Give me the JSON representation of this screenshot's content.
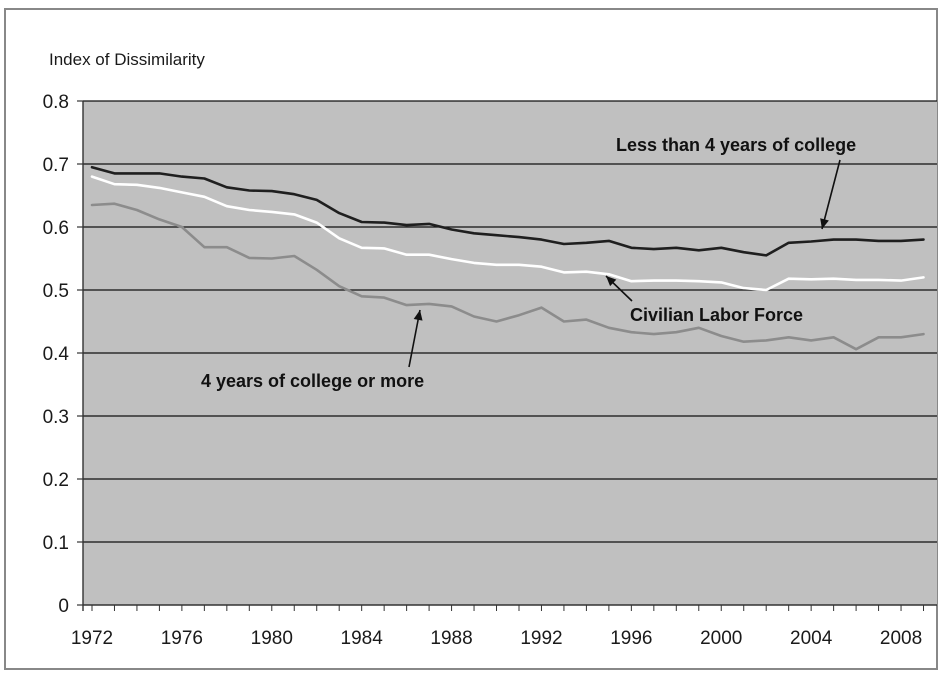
{
  "chart_data": {
    "type": "line",
    "title": "",
    "xlabel": "",
    "ylabel": "Index of Dissimilarity",
    "xlim": [
      1971.6,
      2009.6
    ],
    "ylim": [
      0,
      0.8
    ],
    "y_ticks": [
      "0",
      "0.1",
      "0.2",
      "0.3",
      "0.4",
      "0.5",
      "0.6",
      "0.7",
      "0.8"
    ],
    "x_ticks": [
      "1972",
      "1976",
      "1980",
      "1984",
      "1988",
      "1992",
      "1996",
      "2000",
      "2004",
      "2008"
    ],
    "grid": true,
    "legend": "none (series labeled by annotations with arrows)",
    "x": [
      1972,
      1973,
      1974,
      1975,
      1976,
      1977,
      1978,
      1979,
      1980,
      1981,
      1982,
      1983,
      1984,
      1985,
      1986,
      1987,
      1988,
      1989,
      1990,
      1991,
      1992,
      1993,
      1994,
      1995,
      1996,
      1997,
      1998,
      1999,
      2000,
      2001,
      2002,
      2003,
      2004,
      2005,
      2006,
      2007,
      2008,
      2009
    ],
    "series": [
      {
        "name": "Less than 4 years of college",
        "color": "#1f1f1f",
        "values": [
          0.695,
          0.685,
          0.685,
          0.685,
          0.68,
          0.677,
          0.663,
          0.658,
          0.657,
          0.652,
          0.643,
          0.622,
          0.608,
          0.607,
          0.603,
          0.605,
          0.596,
          0.59,
          0.587,
          0.584,
          0.58,
          0.573,
          0.575,
          0.578,
          0.567,
          0.565,
          0.567,
          0.563,
          0.567,
          0.56,
          0.555,
          0.575,
          0.577,
          0.58,
          0.58,
          0.578,
          0.578,
          0.58
        ]
      },
      {
        "name": "Civilian Labor Force",
        "color": "#ffffff",
        "values": [
          0.68,
          0.668,
          0.667,
          0.662,
          0.655,
          0.648,
          0.633,
          0.627,
          0.624,
          0.62,
          0.607,
          0.582,
          0.567,
          0.566,
          0.556,
          0.556,
          0.549,
          0.543,
          0.54,
          0.54,
          0.537,
          0.528,
          0.529,
          0.525,
          0.514,
          0.515,
          0.515,
          0.514,
          0.512,
          0.503,
          0.5,
          0.518,
          0.517,
          0.518,
          0.516,
          0.516,
          0.515,
          0.52
        ]
      },
      {
        "name": "4 years of college or more",
        "color": "#8c8c8c",
        "values": [
          0.635,
          0.637,
          0.627,
          0.612,
          0.6,
          0.568,
          0.568,
          0.551,
          0.55,
          0.554,
          0.532,
          0.506,
          0.49,
          0.488,
          0.476,
          0.478,
          0.474,
          0.458,
          0.45,
          0.46,
          0.472,
          0.45,
          0.453,
          0.44,
          0.433,
          0.43,
          0.433,
          0.44,
          0.427,
          0.418,
          0.42,
          0.425,
          0.42,
          0.425,
          0.406,
          0.425,
          0.425,
          0.43
        ]
      }
    ],
    "annotations": [
      {
        "text": "Less than 4 years of college",
        "points_to_year": 2004,
        "points_to_value": 0.578
      },
      {
        "text": "Civilian Labor Force",
        "points_to_year": 1995,
        "points_to_value": 0.525
      },
      {
        "text": "4 years of college or more",
        "points_to_year": 1988,
        "points_to_value": 0.474
      }
    ]
  }
}
